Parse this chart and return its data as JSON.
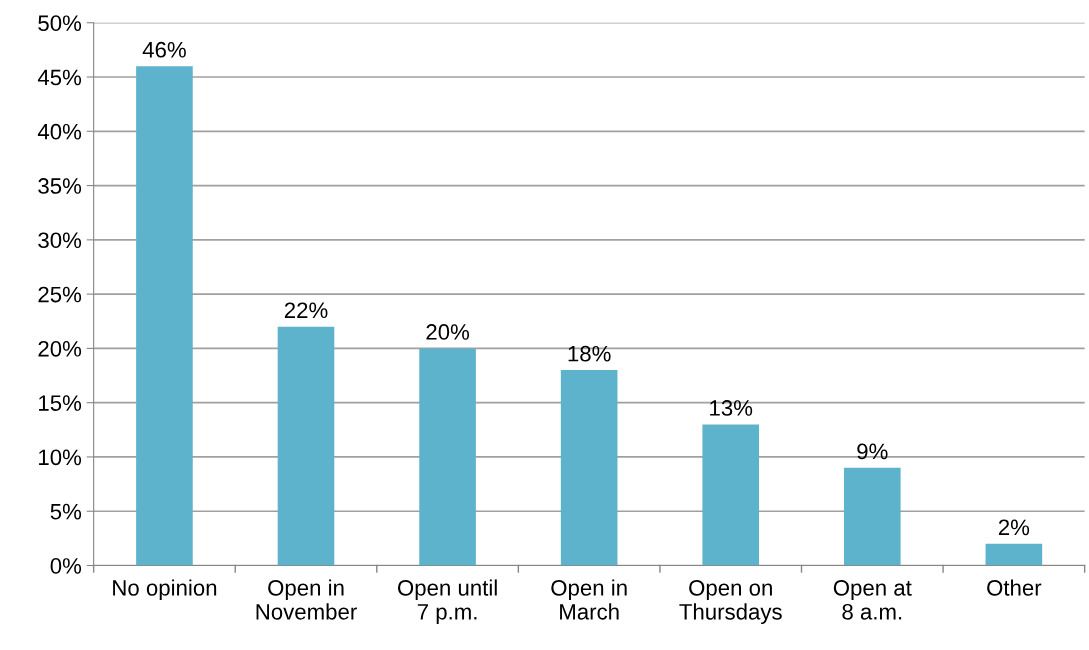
{
  "chart_data": {
    "type": "bar",
    "categories": [
      "No opinion",
      "Open in\nNovember",
      "Open until\n7 p.m.",
      "Open in\nMarch",
      "Open on\nThursdays",
      "Open at\n8 a.m.",
      "Other"
    ],
    "values": [
      46,
      22,
      20,
      18,
      13,
      9,
      2
    ],
    "value_labels": [
      "46%",
      "22%",
      "20%",
      "18%",
      "13%",
      "9%",
      "2%"
    ],
    "color": "#5eb3cc",
    "ylim": [
      0,
      50
    ],
    "yticks": [
      {
        "value": 0,
        "label": "0%"
      },
      {
        "value": 5,
        "label": "5%"
      },
      {
        "value": 10,
        "label": "10%"
      },
      {
        "value": 15,
        "label": "15%"
      },
      {
        "value": 20,
        "label": "20%"
      },
      {
        "value": 25,
        "label": "25%"
      },
      {
        "value": 30,
        "label": "30%"
      },
      {
        "value": 35,
        "label": "35%"
      },
      {
        "value": 40,
        "label": "40%"
      },
      {
        "value": 45,
        "label": "45%"
      },
      {
        "value": 50,
        "label": "50%"
      }
    ],
    "grid": "y"
  }
}
